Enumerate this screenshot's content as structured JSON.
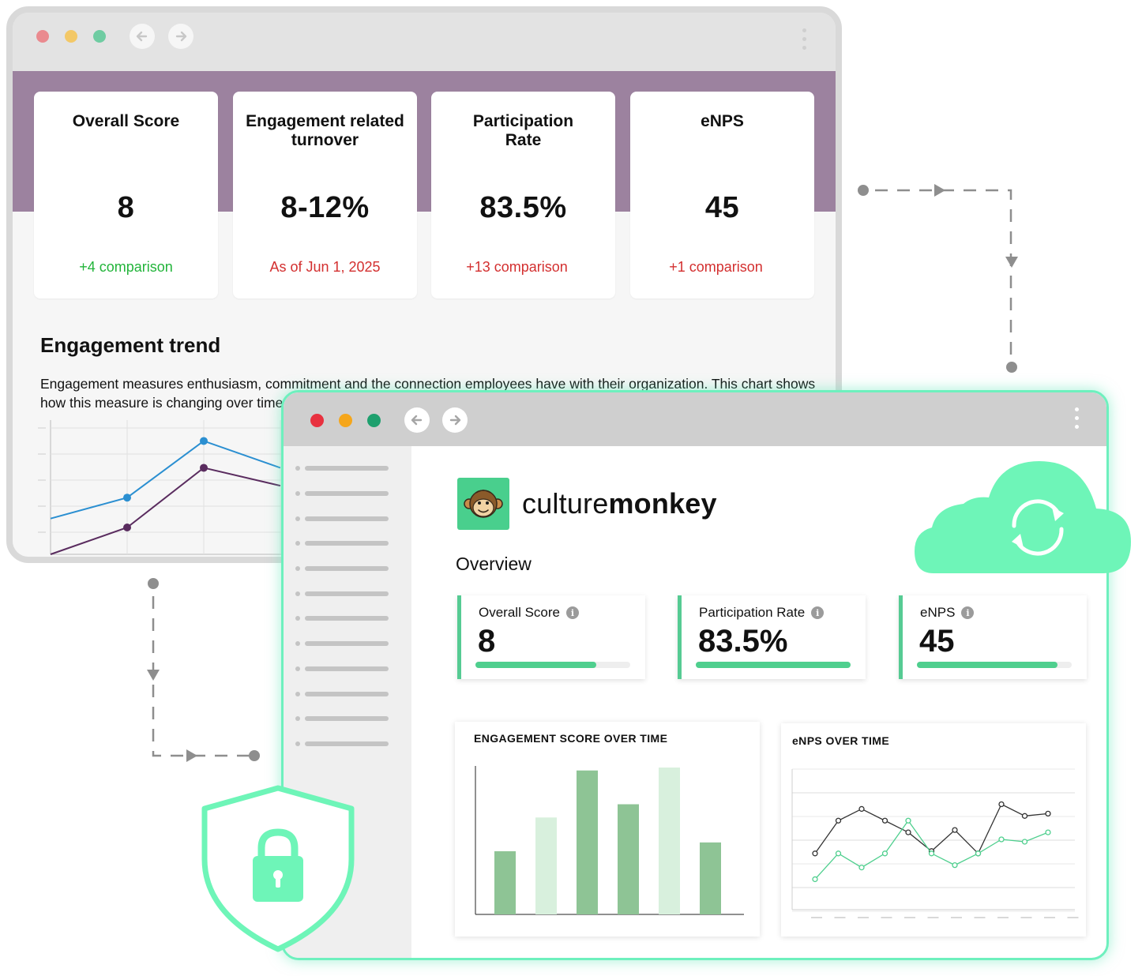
{
  "back_window": {
    "kpis": [
      {
        "title": "Overall Score",
        "value": "8",
        "sub": "+4 comparison",
        "sub_color": "green"
      },
      {
        "title": "Engagement related turnover",
        "value": "8-12%",
        "sub": "As of Jun 1, 2025",
        "sub_color": "red"
      },
      {
        "title": "Participation Rate",
        "value": "83.5%",
        "sub": "+13 comparison",
        "sub_color": "red"
      },
      {
        "title": "eNPS",
        "value": "45",
        "sub": "+1 comparison",
        "sub_color": "red"
      }
    ],
    "trend_title": "Engagement trend",
    "trend_desc": "Engagement measures enthusiasm, commitment and the connection employees have with their organization. This chart shows how this measure is changing over time."
  },
  "front_window": {
    "brand": {
      "light": "culture",
      "bold": "monkey"
    },
    "overview_label": "Overview",
    "metrics": [
      {
        "title": "Overall Score",
        "value": "8",
        "progress": 0.78
      },
      {
        "title": "Participation Rate",
        "value": "83.5%",
        "progress": 1.0
      },
      {
        "title": "eNPS",
        "value": "45",
        "progress": 0.91
      }
    ],
    "engagement_chart_title": "ENGAGEMENT SCORE OVER TIME",
    "enps_chart_title": "eNPS OVER TIME"
  },
  "colors": {
    "purple_band": "#9c829f",
    "accent_green": "#4fcf8e",
    "cloud_green": "#6ef5b8",
    "positive": "#22b43a",
    "negative": "#d32f2f"
  },
  "chart_data": [
    {
      "type": "line",
      "title": "",
      "x": [
        1,
        2,
        3,
        4
      ],
      "series": [
        {
          "values": [
            5.2,
            5.9,
            7.8,
            6.9
          ],
          "color": "#2b8fd1"
        },
        {
          "values": [
            4.0,
            4.9,
            6.9,
            6.3
          ],
          "color": "#5a2c5f"
        }
      ],
      "ylim": [
        4,
        8.5
      ],
      "grid": true
    },
    {
      "type": "bar",
      "title": "ENGAGEMENT SCORE OVER TIME",
      "categories": [
        "1",
        "2",
        "3",
        "4",
        "5",
        "6"
      ],
      "values": [
        43,
        66,
        98,
        75,
        100,
        49
      ],
      "bar_colors": [
        "#8ec495",
        "#d8f0dd",
        "#8ec495",
        "#8ec495",
        "#d8f0dd",
        "#8ec495"
      ],
      "ylim": [
        0,
        100
      ],
      "grid": false
    },
    {
      "type": "line",
      "title": "eNPS OVER TIME",
      "x": [
        1,
        2,
        3,
        4,
        5,
        6,
        7,
        8,
        9,
        10,
        11
      ],
      "series": [
        {
          "values": [
            34,
            48,
            53,
            48,
            43,
            35,
            44,
            34,
            55,
            50,
            51
          ],
          "color": "#333333"
        },
        {
          "values": [
            23,
            34,
            28,
            34,
            48,
            34,
            29,
            34,
            40,
            39,
            43
          ],
          "color": "#4fcf8e"
        }
      ],
      "ylim": [
        10,
        70
      ],
      "grid": true
    }
  ]
}
